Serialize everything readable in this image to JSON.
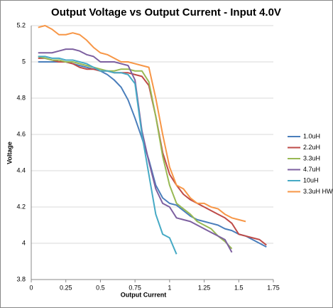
{
  "chart_data": {
    "type": "line",
    "title": "Output Voltage vs Output Current - Input 4.0V",
    "x_label": "Output Current",
    "y_label": "Voltage",
    "xlim": [
      0,
      1.75
    ],
    "ylim": [
      3.8,
      5.2
    ],
    "xticks": [
      0,
      0.25,
      0.5,
      0.75,
      1,
      1.25,
      1.5,
      1.75
    ],
    "yticks": [
      3.8,
      4,
      4.2,
      4.4,
      4.6,
      4.8,
      5,
      5.2
    ],
    "grid": true,
    "legend": "right",
    "series": [
      {
        "name": "1.0uH",
        "color": "#4a7ebb",
        "x": [
          0.05,
          0.1,
          0.15,
          0.2,
          0.25,
          0.3,
          0.35,
          0.4,
          0.45,
          0.5,
          0.55,
          0.6,
          0.65,
          0.7,
          0.75,
          0.8,
          0.85,
          0.9,
          0.95,
          1.0,
          1.05,
          1.1,
          1.15,
          1.2,
          1.25,
          1.3,
          1.35,
          1.4,
          1.45,
          1.5,
          1.55,
          1.6,
          1.65,
          1.7
        ],
        "values": [
          5.0,
          5.0,
          5.0,
          5.0,
          5.0,
          4.99,
          4.98,
          4.97,
          4.96,
          4.95,
          4.93,
          4.9,
          4.86,
          4.79,
          4.69,
          4.58,
          4.46,
          4.32,
          4.25,
          4.22,
          4.21,
          4.18,
          4.15,
          4.13,
          4.12,
          4.11,
          4.1,
          4.08,
          4.07,
          4.05,
          4.04,
          4.02,
          4.0,
          3.98
        ]
      },
      {
        "name": "2.2uH",
        "color": "#be4b48",
        "x": [
          0.05,
          0.1,
          0.15,
          0.2,
          0.25,
          0.3,
          0.35,
          0.4,
          0.45,
          0.5,
          0.55,
          0.6,
          0.65,
          0.7,
          0.75,
          0.8,
          0.85,
          0.9,
          0.95,
          1.0,
          1.05,
          1.1,
          1.15,
          1.2,
          1.25,
          1.3,
          1.35,
          1.4,
          1.45,
          1.5,
          1.55,
          1.6,
          1.65,
          1.7
        ],
        "values": [
          5.02,
          5.02,
          5.01,
          5.0,
          5.0,
          4.99,
          4.97,
          4.96,
          4.96,
          4.95,
          4.95,
          4.94,
          4.94,
          4.94,
          4.93,
          4.92,
          4.87,
          4.7,
          4.5,
          4.38,
          4.32,
          4.27,
          4.24,
          4.22,
          4.2,
          4.18,
          4.16,
          4.14,
          4.11,
          4.05,
          4.04,
          4.03,
          4.02,
          3.99
        ]
      },
      {
        "name": "3.3uH",
        "color": "#98b954",
        "x": [
          0.05,
          0.1,
          0.15,
          0.2,
          0.25,
          0.3,
          0.35,
          0.4,
          0.45,
          0.5,
          0.55,
          0.6,
          0.65,
          0.7,
          0.75,
          0.8,
          0.85,
          0.9,
          0.95,
          1.0,
          1.05,
          1.1,
          1.15,
          1.2,
          1.25,
          1.3,
          1.35,
          1.4,
          1.45
        ],
        "values": [
          5.03,
          5.02,
          5.01,
          5.01,
          5.0,
          5.0,
          4.99,
          4.98,
          4.97,
          4.96,
          4.95,
          4.95,
          4.96,
          4.96,
          4.95,
          4.95,
          4.89,
          4.7,
          4.48,
          4.32,
          4.22,
          4.19,
          4.16,
          4.12,
          4.1,
          4.08,
          4.04,
          4.01,
          3.97
        ]
      },
      {
        "name": "4.7uH",
        "color": "#7d60a0",
        "x": [
          0.05,
          0.1,
          0.15,
          0.2,
          0.25,
          0.3,
          0.35,
          0.4,
          0.45,
          0.5,
          0.55,
          0.6,
          0.65,
          0.7,
          0.75,
          0.8,
          0.85,
          0.9,
          0.95,
          1.0,
          1.05,
          1.1,
          1.15,
          1.2,
          1.25,
          1.3,
          1.35,
          1.4,
          1.45
        ],
        "values": [
          5.05,
          5.05,
          5.05,
          5.06,
          5.07,
          5.07,
          5.06,
          5.04,
          5.03,
          5.0,
          5.0,
          5.0,
          4.99,
          4.98,
          4.9,
          4.62,
          4.45,
          4.3,
          4.22,
          4.2,
          4.14,
          4.13,
          4.12,
          4.1,
          4.08,
          4.06,
          4.04,
          4.02,
          3.95
        ]
      },
      {
        "name": "10uH",
        "color": "#46aac5",
        "x": [
          0.05,
          0.1,
          0.15,
          0.2,
          0.25,
          0.3,
          0.35,
          0.4,
          0.45,
          0.5,
          0.55,
          0.6,
          0.65,
          0.7,
          0.75,
          0.8,
          0.85,
          0.9,
          0.95,
          1.0,
          1.05
        ],
        "values": [
          5.03,
          5.03,
          5.02,
          5.02,
          5.01,
          5.01,
          5.0,
          4.99,
          4.97,
          4.95,
          4.95,
          4.94,
          4.94,
          4.93,
          4.88,
          4.6,
          4.38,
          4.16,
          4.05,
          4.03,
          3.94
        ]
      },
      {
        "name": "3.3uH HW",
        "color": "#f79646",
        "x": [
          0.05,
          0.1,
          0.15,
          0.2,
          0.25,
          0.3,
          0.35,
          0.4,
          0.45,
          0.5,
          0.55,
          0.6,
          0.65,
          0.7,
          0.75,
          0.8,
          0.85,
          0.9,
          0.95,
          1.0,
          1.05,
          1.1,
          1.15,
          1.2,
          1.25,
          1.3,
          1.35,
          1.4,
          1.45,
          1.5,
          1.55
        ],
        "values": [
          5.19,
          5.2,
          5.18,
          5.15,
          5.15,
          5.16,
          5.15,
          5.12,
          5.08,
          5.05,
          5.04,
          5.02,
          5.0,
          5.0,
          4.99,
          4.98,
          4.97,
          4.8,
          4.6,
          4.42,
          4.32,
          4.3,
          4.25,
          4.22,
          4.22,
          4.2,
          4.19,
          4.16,
          4.14,
          4.13,
          4.12
        ]
      }
    ]
  }
}
